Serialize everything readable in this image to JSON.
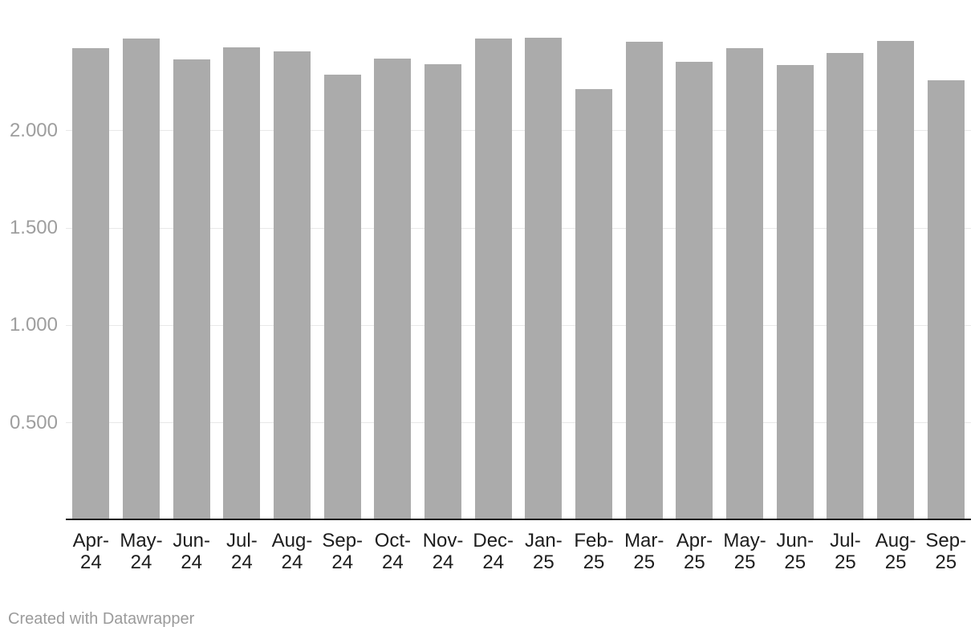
{
  "chart_data": {
    "type": "bar",
    "categories": [
      "Apr-24",
      "May-24",
      "Jun-24",
      "Jul-24",
      "Aug-24",
      "Sep-24",
      "Oct-24",
      "Nov-24",
      "Dec-24",
      "Jan-25",
      "Feb-25",
      "Mar-25",
      "Apr-25",
      "May-25",
      "Jun-25",
      "Jul-25",
      "Aug-25",
      "Sep-25"
    ],
    "values": [
      2.425,
      2.473,
      2.365,
      2.43,
      2.407,
      2.29,
      2.372,
      2.344,
      2.474,
      2.477,
      2.215,
      2.456,
      2.353,
      2.426,
      2.337,
      2.398,
      2.462,
      2.259
    ],
    "title": "",
    "xlabel": "",
    "ylabel": "",
    "ylim": [
      0,
      2.672
    ],
    "grid": true,
    "legend_position": "none",
    "y_ticks": [
      {
        "value": 0.5,
        "label": "0.500"
      },
      {
        "value": 1.0,
        "label": "1.000"
      },
      {
        "value": 1.5,
        "label": "1.500"
      },
      {
        "value": 2.0,
        "label": "2.000"
      }
    ],
    "bar_color": "#ababab",
    "gridline_color": "#e8e8e8",
    "axis_line_color": "#1a1a1a",
    "y_tick_label_color": "#9e9e9e",
    "x_tick_label_color": "#1d1d1d"
  },
  "footer": {
    "credit": "Created with Datawrapper"
  }
}
